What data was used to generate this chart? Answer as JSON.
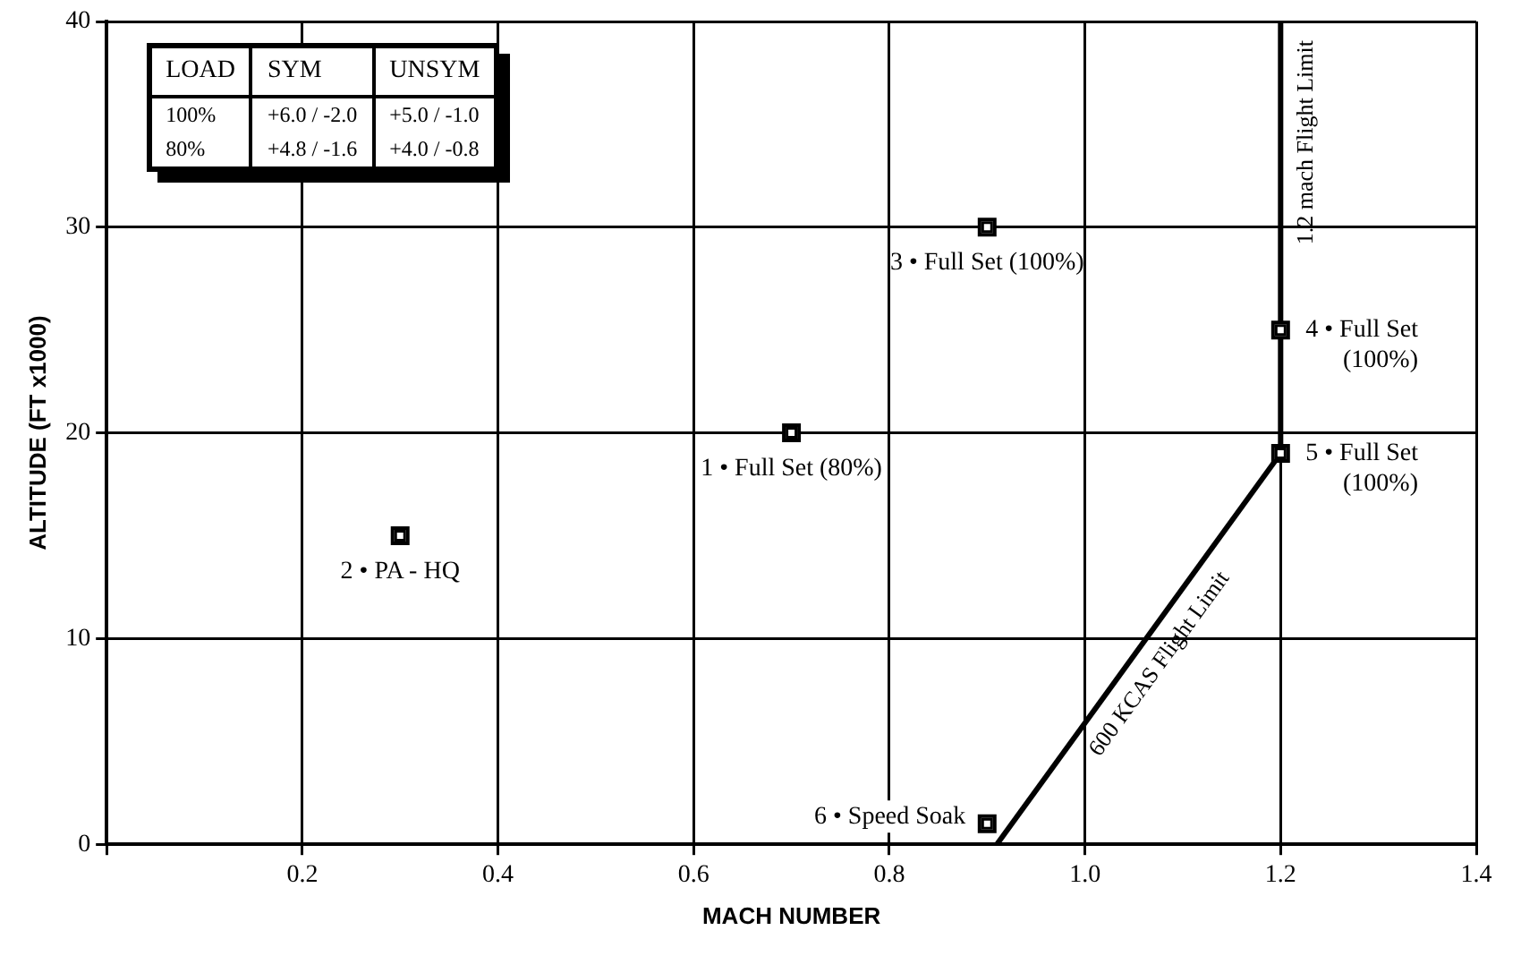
{
  "chart_data": {
    "type": "scatter",
    "xlabel": "MACH NUMBER",
    "ylabel": "ALTITUDE (FT x1000)",
    "xlim": [
      0,
      1.4
    ],
    "ylim": [
      0,
      40
    ],
    "xticks": [
      {
        "value": 0,
        "label": null
      },
      0.2,
      0.4,
      0.6,
      0.8,
      {
        "value": 1,
        "label": "1.0"
      },
      1.2,
      1.4
    ],
    "yticks": [
      0,
      10,
      20,
      30,
      40
    ],
    "grid": true,
    "legend": false,
    "series": [
      {
        "marker": "square",
        "color": "#000000",
        "x": [
          0.7,
          0.3,
          0.9,
          1.2,
          1.2,
          0.9
        ],
        "values": [
          20,
          15,
          30,
          25,
          19,
          1
        ]
      },
      {
        "type": "line",
        "name": "600 KCAS Flight Limit",
        "color": "#000000",
        "x": [
          0.91,
          1.2
        ],
        "values": [
          0,
          19
        ]
      },
      {
        "type": "line",
        "name": "1.2 mach Flight Limit",
        "color": "#000000",
        "x": [
          1.2,
          1.2
        ],
        "values": [
          19,
          40
        ]
      }
    ],
    "annotations": [
      "LOAD",
      "SYM",
      "UNSYM",
      "100%",
      "+6.0 / -2.0",
      "+5.0 / -1.0",
      "80%",
      "+4.8 / -1.6",
      "+4.0 / -0.8",
      {
        "text": "1 • Full Set (80%)",
        "x": 0.7,
        "y": 20
      },
      {
        "text": "2 • PA - HQ",
        "x": 0.3,
        "y": 15
      },
      {
        "text": "3 • Full Set (100%)",
        "x": 0.9,
        "y": 30
      },
      {
        "text": "4 • Full Set\n(100%)",
        "x": 1.2,
        "y": 25
      },
      {
        "text": "5 • Full Set\n(100%)",
        "x": 1.2,
        "y": 19
      },
      {
        "text": "6 • Speed Soak",
        "x": 0.9,
        "y": 1
      }
    ]
  }
}
